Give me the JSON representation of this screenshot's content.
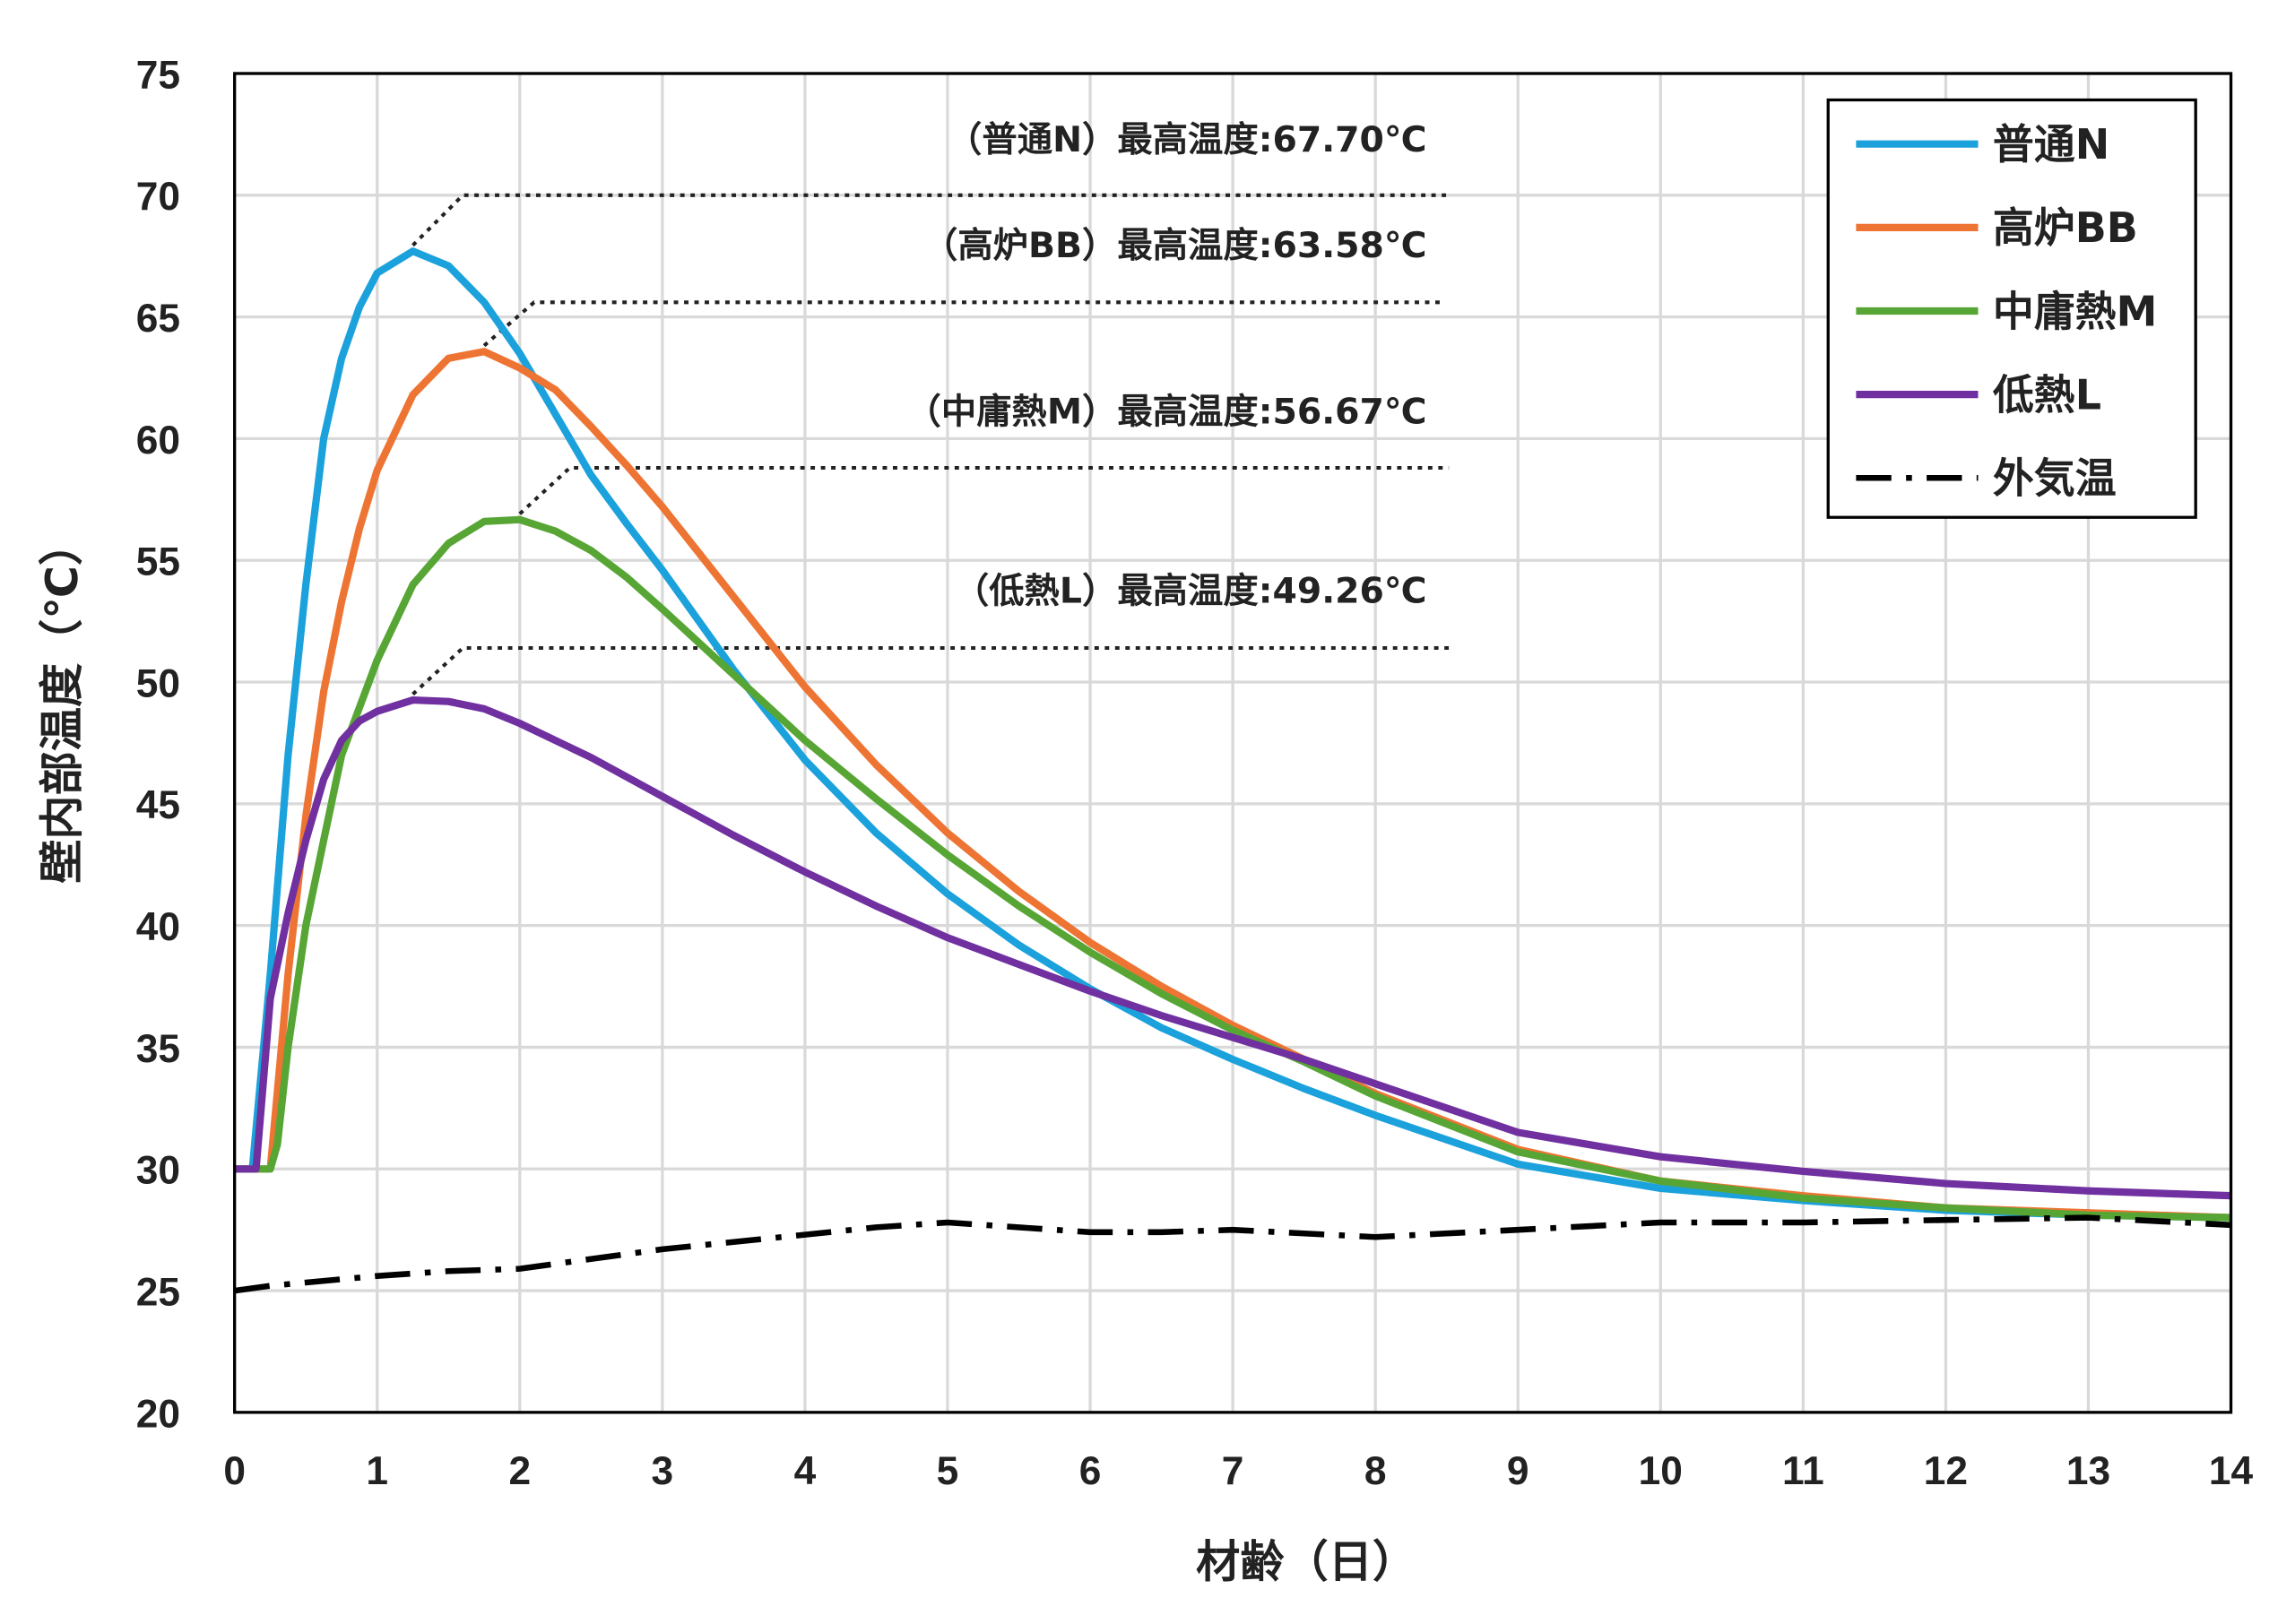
{
  "chart_data": {
    "type": "line",
    "xlabel": "材齢（日）",
    "ylabel": "壁内部温度（℃）",
    "xlim": [
      0,
      14
    ],
    "ylim": [
      20,
      75
    ],
    "xticks": [
      "0",
      "1",
      "2",
      "3",
      "4",
      "5",
      "6",
      "7",
      "8",
      "9",
      "10",
      "11",
      "12",
      "13",
      "14"
    ],
    "yticks": [
      "20",
      "25",
      "30",
      "35",
      "40",
      "45",
      "50",
      "55",
      "60",
      "65",
      "70",
      "75"
    ],
    "grid": true,
    "legend_position": "top-right",
    "series": [
      {
        "name": "普通N",
        "color": "#1BA1DB",
        "dash": "solid",
        "x": [
          0,
          0.125,
          0.25,
          0.375,
          0.5,
          0.625,
          0.75,
          0.875,
          1,
          1.25,
          1.5,
          1.75,
          2,
          2.25,
          2.5,
          2.75,
          3,
          3.5,
          4,
          4.5,
          5,
          5.5,
          6,
          6.5,
          7,
          7.5,
          8,
          9,
          10,
          11,
          12,
          13,
          14
        ],
        "y": [
          30,
          30,
          38,
          47,
          54,
          60,
          63.3,
          65.4,
          66.8,
          67.7,
          67.1,
          65.6,
          63.5,
          61,
          58.5,
          56.5,
          54.6,
          50.5,
          46.8,
          43.8,
          41.3,
          39.2,
          37.4,
          35.8,
          34.5,
          33.3,
          32.2,
          30.2,
          29.2,
          28.7,
          28.3,
          28.1,
          28.0
        ]
      },
      {
        "name": "高炉BB",
        "color": "#EE7433",
        "dash": "solid",
        "x": [
          0,
          0.125,
          0.25,
          0.375,
          0.5,
          0.625,
          0.75,
          0.875,
          1,
          1.25,
          1.5,
          1.75,
          2,
          2.25,
          2.5,
          2.75,
          3,
          3.5,
          4,
          4.5,
          5,
          5.5,
          6,
          6.5,
          7,
          7.5,
          8,
          9,
          10,
          11,
          12,
          13,
          14
        ],
        "y": [
          30,
          30,
          30,
          38,
          44.5,
          49.6,
          53.3,
          56.3,
          58.7,
          61.8,
          63.3,
          63.58,
          62.9,
          62,
          60.5,
          58.9,
          57.2,
          53.5,
          49.8,
          46.6,
          43.8,
          41.4,
          39.3,
          37.5,
          35.9,
          34.5,
          33.1,
          30.8,
          29.5,
          28.9,
          28.4,
          28.2,
          28.0
        ]
      },
      {
        "name": "中庸熱M",
        "color": "#57A635",
        "dash": "solid",
        "x": [
          0,
          0.125,
          0.25,
          0.3,
          0.375,
          0.5,
          0.625,
          0.75,
          1,
          1.25,
          1.5,
          1.75,
          2,
          2.25,
          2.5,
          2.75,
          3,
          3.5,
          4,
          4.5,
          5,
          5.5,
          6,
          6.5,
          7,
          7.5,
          8,
          9,
          10,
          11,
          12,
          13,
          14
        ],
        "y": [
          30,
          30,
          30,
          31,
          35,
          40,
          43.5,
          47,
          50.9,
          54,
          55.7,
          56.6,
          56.67,
          56.2,
          55.4,
          54.3,
          53,
          50.3,
          47.6,
          45.2,
          42.9,
          40.8,
          38.9,
          37.2,
          35.7,
          34.4,
          33.0,
          30.7,
          29.5,
          28.8,
          28.4,
          28.1,
          28.0
        ]
      },
      {
        "name": "低熱L",
        "color": "#7030A0",
        "dash": "solid",
        "x": [
          0,
          0.15,
          0.25,
          0.375,
          0.5,
          0.625,
          0.75,
          0.875,
          1,
          1.25,
          1.5,
          1.75,
          2,
          2.5,
          3,
          3.5,
          4,
          4.5,
          5,
          5.5,
          6,
          6.5,
          7,
          7.5,
          8,
          8.5,
          9,
          10,
          11,
          12,
          13,
          14
        ],
        "y": [
          30,
          30,
          37,
          40.5,
          43.5,
          46,
          47.6,
          48.4,
          48.8,
          49.26,
          49.2,
          48.9,
          48.3,
          46.9,
          45.3,
          43.7,
          42.2,
          40.8,
          39.5,
          38.4,
          37.3,
          36.3,
          35.4,
          34.5,
          33.5,
          32.5,
          31.5,
          30.5,
          29.9,
          29.4,
          29.1,
          28.9
        ]
      },
      {
        "name": "外気温",
        "color": "#000000",
        "dash": "dash-dot",
        "x": [
          0,
          0.25,
          1,
          1.5,
          2,
          3,
          4,
          4.5,
          5,
          6,
          6.5,
          7,
          8,
          9,
          10,
          11,
          12,
          13,
          14
        ],
        "y": [
          25,
          25.2,
          25.6,
          25.8,
          25.9,
          26.7,
          27.3,
          27.6,
          27.8,
          27.4,
          27.4,
          27.5,
          27.2,
          27.5,
          27.8,
          27.8,
          27.9,
          28.0,
          27.7
        ]
      }
    ],
    "annotations": [
      {
        "text": "（普通N）最高温度:67.70℃",
        "series": "普通N",
        "peak_x": 1.25,
        "peak_y": 67.7,
        "line_y": 70
      },
      {
        "text": "（高炉BB）最高温度:63.58℃",
        "series": "高炉BB",
        "peak_x": 1.75,
        "peak_y": 63.58,
        "line_y": 65.6
      },
      {
        "text": "（中庸熱M）最高温度:56.67℃",
        "series": "中庸熱M",
        "peak_x": 2.0,
        "peak_y": 56.67,
        "line_y": 58.8
      },
      {
        "text": "（低熱L）最高温度:49.26℃",
        "series": "低熱L",
        "peak_x": 1.25,
        "peak_y": 49.26,
        "line_y": 51.4
      }
    ]
  }
}
